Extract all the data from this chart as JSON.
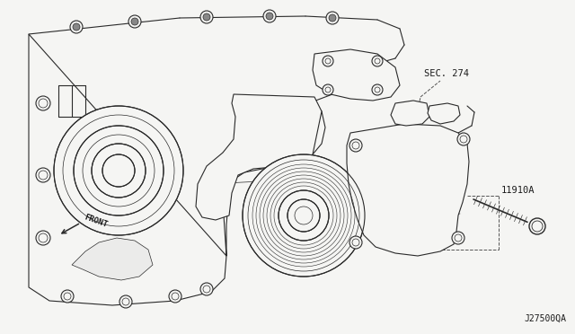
{
  "bg_color": "#f5f5f3",
  "line_color": "#2a2a2a",
  "text_color": "#1a1a1a",
  "label_sec274": "SEC. 274",
  "label_11910a": "11910A",
  "label_front": "FRONT",
  "label_j27500qa": "J27500QA",
  "fig_width": 6.4,
  "fig_height": 3.72,
  "dpi": 100
}
